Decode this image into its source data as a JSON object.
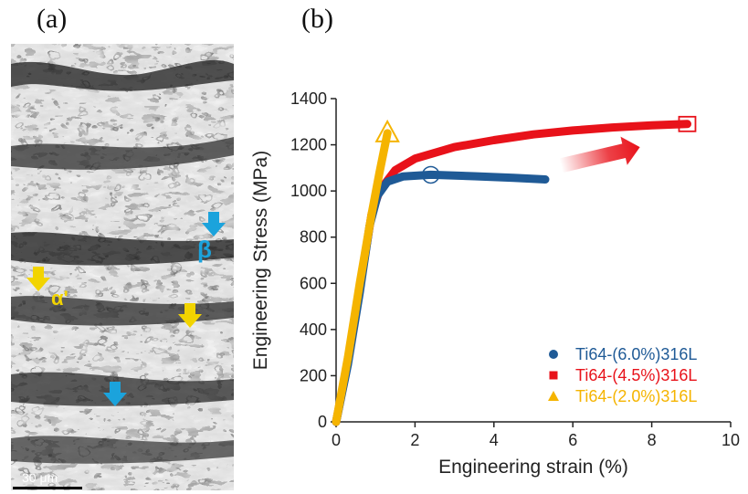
{
  "panels": {
    "a_label": "(a)",
    "b_label": "(b)"
  },
  "micrograph": {
    "scale_bar_label": "30 μm",
    "beta_label": "β",
    "alpha_label": "α'",
    "colors": {
      "beta": "#1ba3dc",
      "alpha": "#f2d400"
    }
  },
  "chart_data": {
    "type": "line",
    "xlabel": "Engineering strain (%)",
    "ylabel": "Engineering Stress (MPa)",
    "xlim": [
      0,
      10
    ],
    "ylim": [
      0,
      1400
    ],
    "xticks": [
      0,
      2,
      4,
      6,
      8,
      10
    ],
    "yticks": [
      0,
      200,
      400,
      600,
      800,
      1000,
      1200,
      1400
    ],
    "legend_position": "bottom-right",
    "series": [
      {
        "name": "Ti64-(6.0%)316L",
        "color": "#1f5a96",
        "marker": "circle",
        "end_point": [
          2.4,
          1070
        ],
        "points": [
          [
            0,
            0
          ],
          [
            0.3,
            250
          ],
          [
            0.6,
            560
          ],
          [
            0.85,
            850
          ],
          [
            1.05,
            980
          ],
          [
            1.3,
            1040
          ],
          [
            1.7,
            1063
          ],
          [
            2.4,
            1070
          ],
          [
            3.5,
            1064
          ],
          [
            4.5,
            1057
          ],
          [
            5.3,
            1050
          ]
        ]
      },
      {
        "name": "Ti64-(4.5%)316L",
        "color": "#e8121a",
        "marker": "square",
        "end_point": [
          8.9,
          1290
        ],
        "points": [
          [
            0,
            0
          ],
          [
            0.3,
            260
          ],
          [
            0.6,
            580
          ],
          [
            0.9,
            900
          ],
          [
            1.1,
            1000
          ],
          [
            1.5,
            1090
          ],
          [
            2.0,
            1140
          ],
          [
            3.0,
            1190
          ],
          [
            4.0,
            1220
          ],
          [
            5.0,
            1245
          ],
          [
            6.0,
            1262
          ],
          [
            7.0,
            1275
          ],
          [
            8.0,
            1284
          ],
          [
            8.9,
            1290
          ]
        ]
      },
      {
        "name": "Ti64-(2.0%)316L",
        "color": "#f5b400",
        "marker": "triangle",
        "end_point": [
          1.3,
          1250
        ],
        "points": [
          [
            0,
            0
          ],
          [
            0.3,
            280
          ],
          [
            0.6,
            600
          ],
          [
            0.9,
            900
          ],
          [
            1.1,
            1080
          ],
          [
            1.3,
            1250
          ]
        ]
      }
    ],
    "annotations": [
      {
        "type": "arrow",
        "color": "#e8121a",
        "from": [
          5.7,
          1110
        ],
        "to": [
          7.7,
          1190
        ]
      }
    ]
  }
}
